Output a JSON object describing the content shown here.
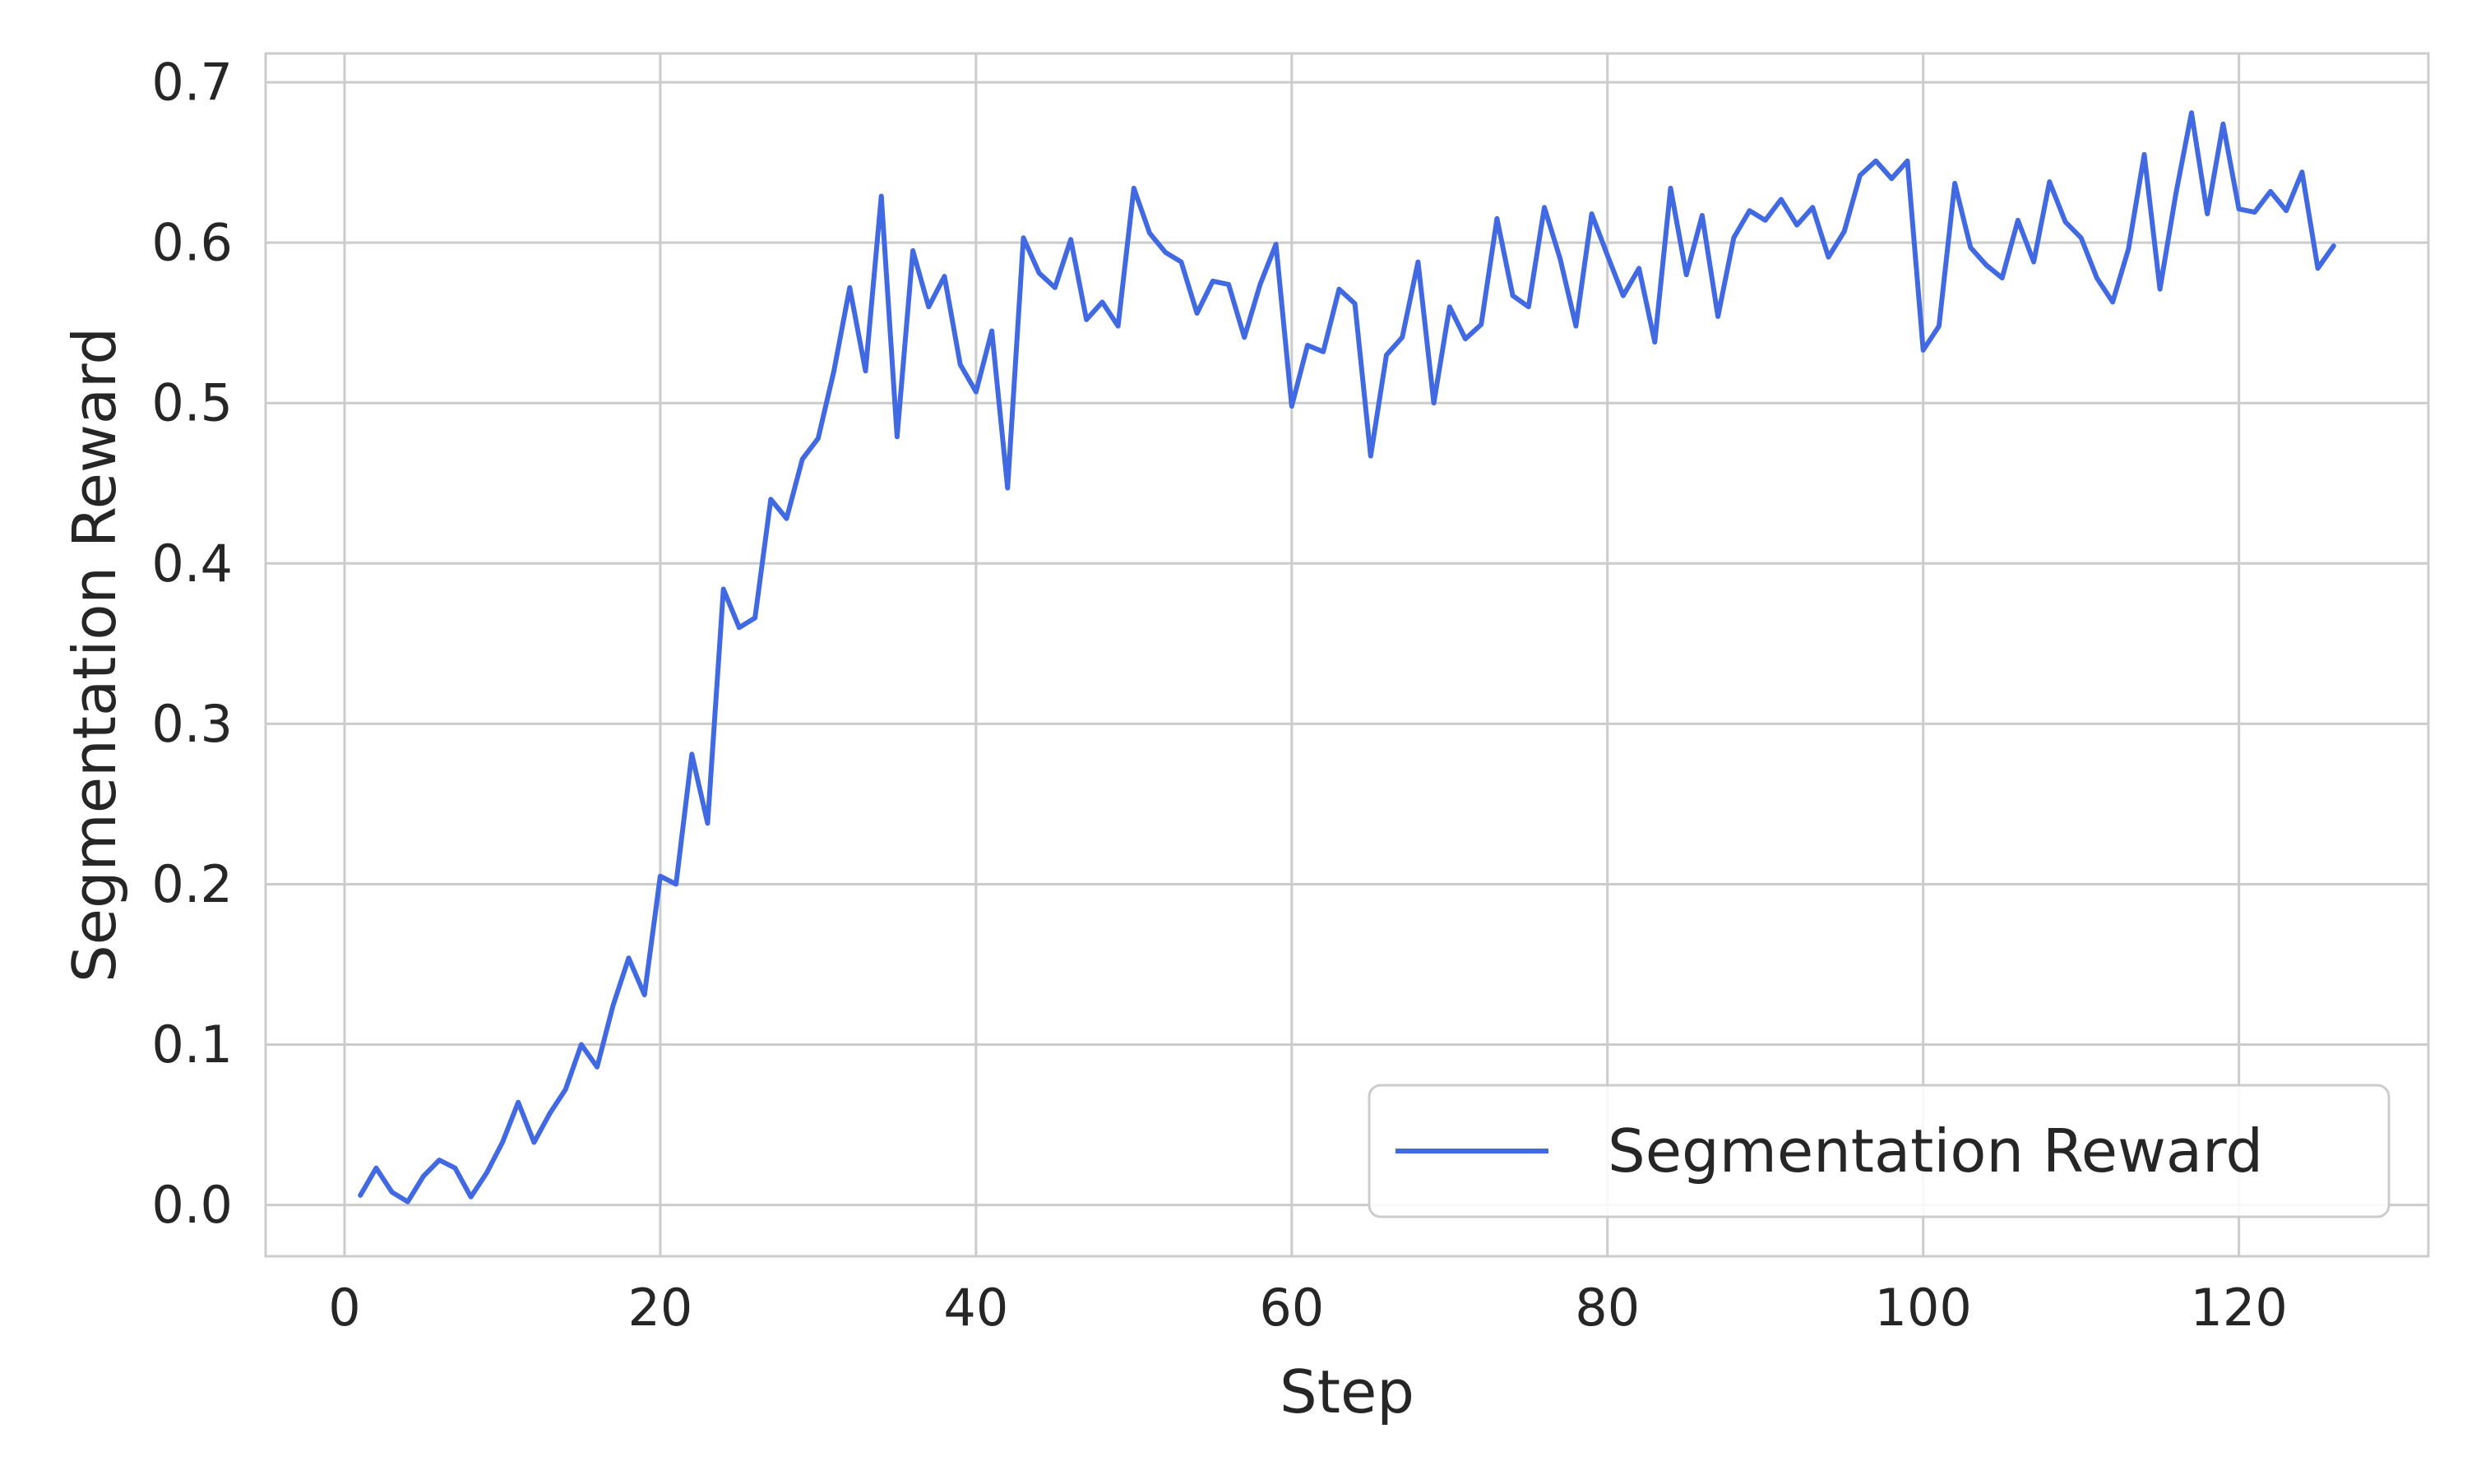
{
  "chart_data": {
    "type": "line",
    "title": "",
    "xlabel": "Step",
    "ylabel": "Segmentation Reward",
    "xlim": [
      -5,
      132
    ],
    "ylim": [
      -0.032,
      0.718
    ],
    "xticks": [
      0,
      20,
      40,
      60,
      80,
      100,
      120
    ],
    "yticks": [
      0.0,
      0.1,
      0.2,
      0.3,
      0.4,
      0.5,
      0.6,
      0.7
    ],
    "xtick_labels": [
      "0",
      "20",
      "40",
      "60",
      "80",
      "100",
      "120"
    ],
    "ytick_labels": [
      "0.0",
      "0.1",
      "0.2",
      "0.3",
      "0.4",
      "0.5",
      "0.6",
      "0.7"
    ],
    "grid": true,
    "legend_position": "bottom-right",
    "series": [
      {
        "name": "Segmentation Reward",
        "color": "#4169E1",
        "x": [
          1,
          2,
          3,
          4,
          5,
          6,
          7,
          8,
          9,
          10,
          11,
          12,
          13,
          14,
          15,
          16,
          17,
          18,
          19,
          20,
          21,
          22,
          23,
          24,
          25,
          26,
          27,
          28,
          29,
          30,
          31,
          32,
          33,
          34,
          35,
          36,
          37,
          38,
          39,
          40,
          41,
          42,
          43,
          44,
          45,
          46,
          47,
          48,
          49,
          50,
          51,
          52,
          53,
          54,
          55,
          56,
          57,
          58,
          59,
          60,
          61,
          62,
          63,
          64,
          65,
          66,
          67,
          68,
          69,
          70,
          71,
          72,
          73,
          74,
          75,
          76,
          77,
          78,
          79,
          80,
          81,
          82,
          83,
          84,
          85,
          86,
          87,
          88,
          89,
          90,
          91,
          92,
          93,
          94,
          95,
          96,
          97,
          98,
          99,
          100,
          101,
          102,
          103,
          104,
          105,
          106,
          107,
          108,
          109,
          110,
          111,
          112,
          113,
          114,
          115,
          116,
          117,
          118,
          119,
          120,
          121,
          122,
          123,
          124,
          125,
          126
        ],
        "y": [
          0.006,
          0.023,
          0.008,
          0.002,
          0.018,
          0.028,
          0.023,
          0.005,
          0.02,
          0.039,
          0.064,
          0.039,
          0.057,
          0.072,
          0.1,
          0.086,
          0.124,
          0.154,
          0.131,
          0.205,
          0.2,
          0.281,
          0.238,
          0.384,
          0.36,
          0.366,
          0.44,
          0.428,
          0.465,
          0.478,
          0.52,
          0.572,
          0.52,
          0.629,
          0.479,
          0.595,
          0.56,
          0.579,
          0.524,
          0.507,
          0.545,
          0.447,
          0.603,
          0.581,
          0.572,
          0.602,
          0.552,
          0.563,
          0.548,
          0.634,
          0.606,
          0.594,
          0.588,
          0.556,
          0.576,
          0.574,
          0.541,
          0.574,
          0.599,
          0.498,
          0.536,
          0.532,
          0.571,
          0.562,
          0.467,
          0.53,
          0.541,
          0.588,
          0.5,
          0.56,
          0.54,
          0.549,
          0.615,
          0.567,
          0.56,
          0.622,
          0.59,
          0.548,
          0.618,
          0.592,
          0.567,
          0.584,
          0.538,
          0.634,
          0.58,
          0.617,
          0.554,
          0.603,
          0.62,
          0.614,
          0.627,
          0.611,
          0.622,
          0.591,
          0.607,
          0.642,
          0.651,
          0.64,
          0.651,
          0.533,
          0.548,
          0.637,
          0.597,
          0.586,
          0.578,
          0.614,
          0.588,
          0.638,
          0.613,
          0.603,
          0.578,
          0.563,
          0.596,
          0.655,
          0.571,
          0.63,
          0.681,
          0.618,
          0.674,
          0.621,
          0.619,
          0.632,
          0.62,
          0.644,
          0.584,
          0.598
        ]
      }
    ]
  }
}
